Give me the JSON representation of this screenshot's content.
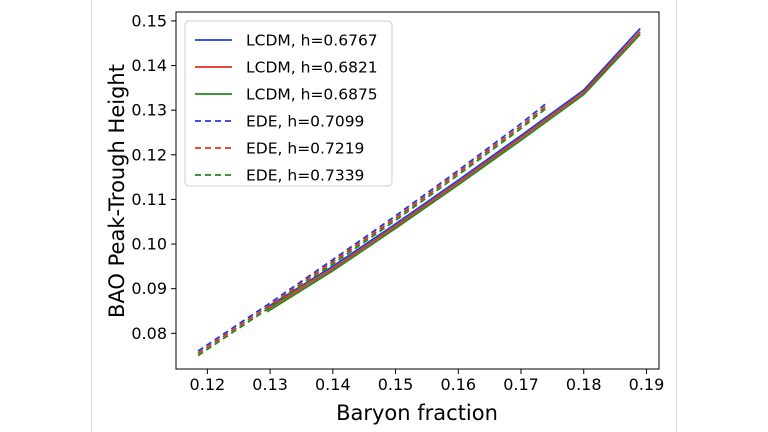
{
  "chart_data": {
    "type": "line",
    "xlabel": "Baryon fraction",
    "ylabel": "BAO Peak-Trough Height",
    "xlim": [
      0.115,
      0.192
    ],
    "ylim": [
      0.072,
      0.152
    ],
    "x_ticks": [
      "0.12",
      "0.13",
      "0.14",
      "0.15",
      "0.16",
      "0.17",
      "0.18",
      "0.19"
    ],
    "y_ticks": [
      "0.08",
      "0.09",
      "0.10",
      "0.11",
      "0.12",
      "0.13",
      "0.14",
      "0.15"
    ],
    "grid": false,
    "legend_position": "top-left",
    "series": [
      {
        "name": "LCDM, h=0.6767",
        "color": "#1f3fd6",
        "style": "solid",
        "x": [
          0.1295,
          0.14,
          0.15,
          0.16,
          0.17,
          0.18,
          0.189
        ],
        "y": [
          0.0858,
          0.095,
          0.1045,
          0.1143,
          0.1243,
          0.1345,
          0.1483
        ]
      },
      {
        "name": "LCDM, h=0.6821",
        "color": "#e8301e",
        "style": "solid",
        "x": [
          0.1295,
          0.14,
          0.15,
          0.16,
          0.17,
          0.18,
          0.189
        ],
        "y": [
          0.0853,
          0.0945,
          0.104,
          0.1138,
          0.1238,
          0.134,
          0.1476
        ]
      },
      {
        "name": "LCDM, h=0.6875",
        "color": "#1e8a1e",
        "style": "solid",
        "x": [
          0.1295,
          0.14,
          0.15,
          0.16,
          0.17,
          0.18,
          0.189
        ],
        "y": [
          0.0848,
          0.094,
          0.1035,
          0.1133,
          0.1233,
          0.1335,
          0.147
        ]
      },
      {
        "name": "EDE, h=0.7099",
        "color": "#1f3fd6",
        "style": "dashed",
        "x": [
          0.1185,
          0.13,
          0.14,
          0.15,
          0.16,
          0.17,
          0.174
        ],
        "y": [
          0.076,
          0.0868,
          0.0965,
          0.1063,
          0.1165,
          0.127,
          0.1315
        ]
      },
      {
        "name": "EDE, h=0.7219",
        "color": "#e8301e",
        "style": "dashed",
        "x": [
          0.1185,
          0.13,
          0.14,
          0.15,
          0.16,
          0.17,
          0.174
        ],
        "y": [
          0.0755,
          0.0863,
          0.096,
          0.1058,
          0.116,
          0.1264,
          0.1309
        ]
      },
      {
        "name": "EDE, h=0.7339",
        "color": "#1e8a1e",
        "style": "dashed",
        "x": [
          0.1185,
          0.13,
          0.14,
          0.15,
          0.16,
          0.17,
          0.174
        ],
        "y": [
          0.075,
          0.0858,
          0.0955,
          0.1053,
          0.1155,
          0.1259,
          0.1304
        ]
      }
    ]
  }
}
